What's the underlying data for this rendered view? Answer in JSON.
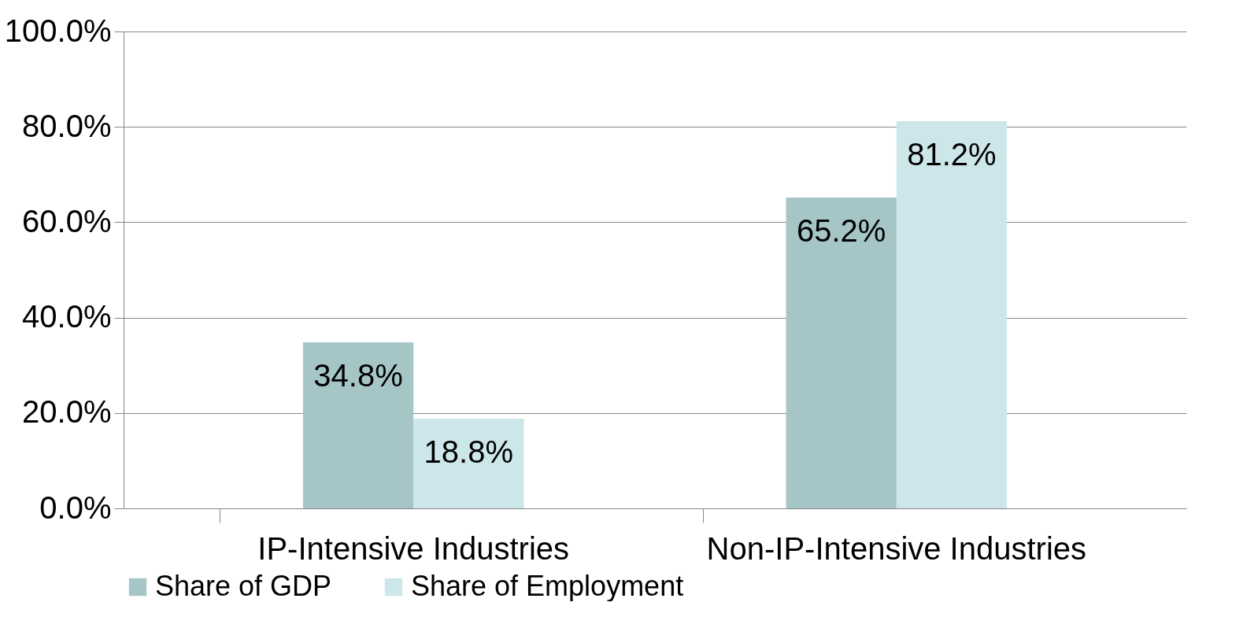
{
  "chart_data": {
    "type": "bar",
    "categories": [
      "IP-Intensive Industries",
      "Non-IP-Intensive Industries"
    ],
    "series": [
      {
        "name": "Share of GDP",
        "color": "#a5c5c7",
        "values": [
          34.8,
          65.2
        ],
        "value_labels": [
          "34.8%",
          "65.2%"
        ]
      },
      {
        "name": "Share of Employment",
        "color": "#cde6ea",
        "values": [
          18.8,
          81.2
        ],
        "value_labels": [
          "18.8%",
          "81.2%"
        ]
      }
    ],
    "ylim": [
      0,
      100
    ],
    "yticks": [
      {
        "value": 0,
        "label": "0.0%"
      },
      {
        "value": 20,
        "label": "20.0%"
      },
      {
        "value": 40,
        "label": "40.0%"
      },
      {
        "value": 60,
        "label": "60.0%"
      },
      {
        "value": 80,
        "label": "80.0%"
      },
      {
        "value": 100,
        "label": "100.0%"
      }
    ],
    "grid": "y",
    "legend": "bottom"
  }
}
